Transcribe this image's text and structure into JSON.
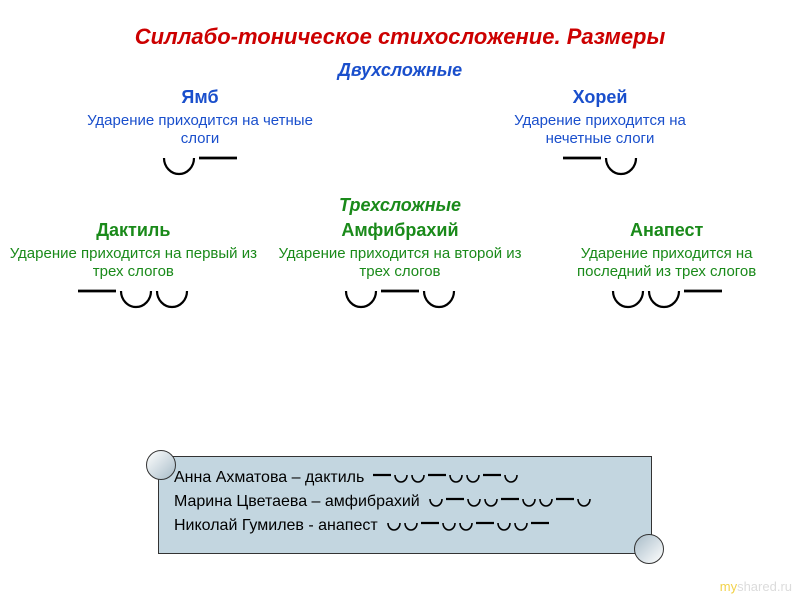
{
  "colors": {
    "red": "#cc0000",
    "blue": "#1a4fcc",
    "green": "#1a8a1a",
    "black": "#000000",
    "scroll_bg": "#c3d6e0"
  },
  "title": "Силлабо-тоническое стихосложение. Размеры",
  "section_disyllabic": "Двухсложные",
  "section_trisyllabic": "Трехсложные",
  "iamb": {
    "name": "Ямб",
    "desc": "Ударение приходится на четные слоги",
    "pattern": [
      "u",
      "s"
    ]
  },
  "trochee": {
    "name": "Хорей",
    "desc": "Ударение приходится на нечетные слоги",
    "pattern": [
      "s",
      "u"
    ]
  },
  "dactyl": {
    "name": "Дактиль",
    "desc": "Ударение приходится на первый из трех слогов",
    "pattern": [
      "s",
      "u",
      "u"
    ]
  },
  "amphibrach": {
    "name": "Амфибрахий",
    "desc": "Ударение приходится на второй из трех слогов",
    "pattern": [
      "u",
      "s",
      "u"
    ]
  },
  "anapest": {
    "name": "Анапест",
    "desc": "Ударение приходится на последний из трех слогов",
    "pattern": [
      "u",
      "u",
      "s"
    ]
  },
  "examples": [
    {
      "text": "Анна Ахматова – дактиль",
      "pattern": [
        "s",
        "u",
        "u",
        "s",
        "u",
        "u",
        "s",
        "u"
      ]
    },
    {
      "text": "Марина Цветаева – амфибрахий",
      "pattern": [
        "u",
        "s",
        "u",
        "u",
        "s",
        "u",
        "u",
        "s",
        "u"
      ]
    },
    {
      "text": "Николай Гумилев - анапест",
      "pattern": [
        "u",
        "u",
        "s",
        "u",
        "u",
        "s",
        "u",
        "u",
        "s"
      ]
    }
  ],
  "watermark": {
    "prefix": "my",
    "suffix": "shared.ru"
  },
  "glyph": {
    "large": {
      "arc_w": 34,
      "arc_h": 20,
      "stress_w": 40,
      "stroke": 2.2
    },
    "small": {
      "arc_w": 16,
      "arc_h": 11,
      "stress_w": 20,
      "stroke": 1.6
    }
  }
}
